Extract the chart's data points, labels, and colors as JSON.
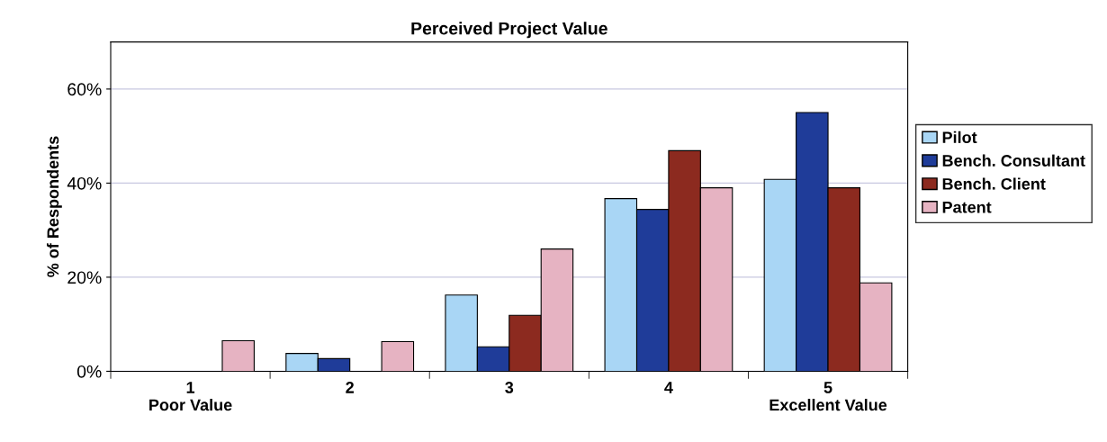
{
  "chart_data": {
    "type": "bar",
    "title": "Perceived Project Value",
    "ylabel": "% of Respondents",
    "categories": [
      "1\nPoor Value",
      "2",
      "3",
      "4",
      "5\nExcellent Value"
    ],
    "series": [
      {
        "name": "Pilot",
        "color": "#a9d6f5",
        "values": [
          null,
          3.8,
          16.2,
          36.7,
          40.8
        ]
      },
      {
        "name": "Bench. Consultant",
        "color": "#1f3c99",
        "values": [
          null,
          2.7,
          5.2,
          34.4,
          55
        ]
      },
      {
        "name": "Bench. Client",
        "color": "#8c2a1f",
        "values": [
          null,
          null,
          11.9,
          46.9,
          39
        ]
      },
      {
        "name": "Patent",
        "color": "#e6b3c2",
        "values": [
          6.5,
          6.3,
          26,
          39,
          18.8
        ]
      }
    ],
    "ylim": [
      0,
      70
    ],
    "yticks": [
      {
        "value": 0,
        "label": "0%"
      },
      {
        "value": 20,
        "label": "20%"
      },
      {
        "value": 40,
        "label": "40%"
      },
      {
        "value": 60,
        "label": "60%"
      }
    ],
    "grid": "y",
    "legend": "right"
  }
}
